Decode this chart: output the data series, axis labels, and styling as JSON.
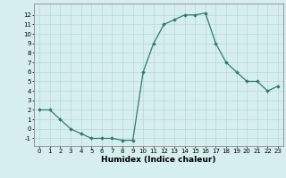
{
  "x": [
    0,
    1,
    2,
    3,
    4,
    5,
    6,
    7,
    8,
    9,
    10,
    11,
    12,
    13,
    14,
    15,
    16,
    17,
    18,
    19,
    20,
    21,
    22,
    23
  ],
  "y": [
    2,
    2,
    1,
    0,
    -0.5,
    -1,
    -1,
    -1,
    -1.2,
    -1.2,
    6,
    9,
    11,
    11.5,
    12,
    12,
    12.2,
    9,
    7,
    6,
    5,
    5,
    4,
    4.5
  ],
  "line_color": "#2e7d6e",
  "marker": "D",
  "markersize": 1.8,
  "linewidth": 0.9,
  "xlabel": "Humidex (Indice chaleur)",
  "xlim": [
    -0.5,
    23.5
  ],
  "ylim": [
    -1.8,
    13.2
  ],
  "yticks": [
    -1,
    0,
    1,
    2,
    3,
    4,
    5,
    6,
    7,
    8,
    9,
    10,
    11,
    12
  ],
  "xticks": [
    0,
    1,
    2,
    3,
    4,
    5,
    6,
    7,
    8,
    9,
    10,
    11,
    12,
    13,
    14,
    15,
    16,
    17,
    18,
    19,
    20,
    21,
    22,
    23
  ],
  "bg_color": "#d6eeee",
  "grid_color": "#b8d8d8",
  "tick_label_fontsize": 5.0,
  "xlabel_fontsize": 6.5,
  "xlabel_fontweight": "bold"
}
